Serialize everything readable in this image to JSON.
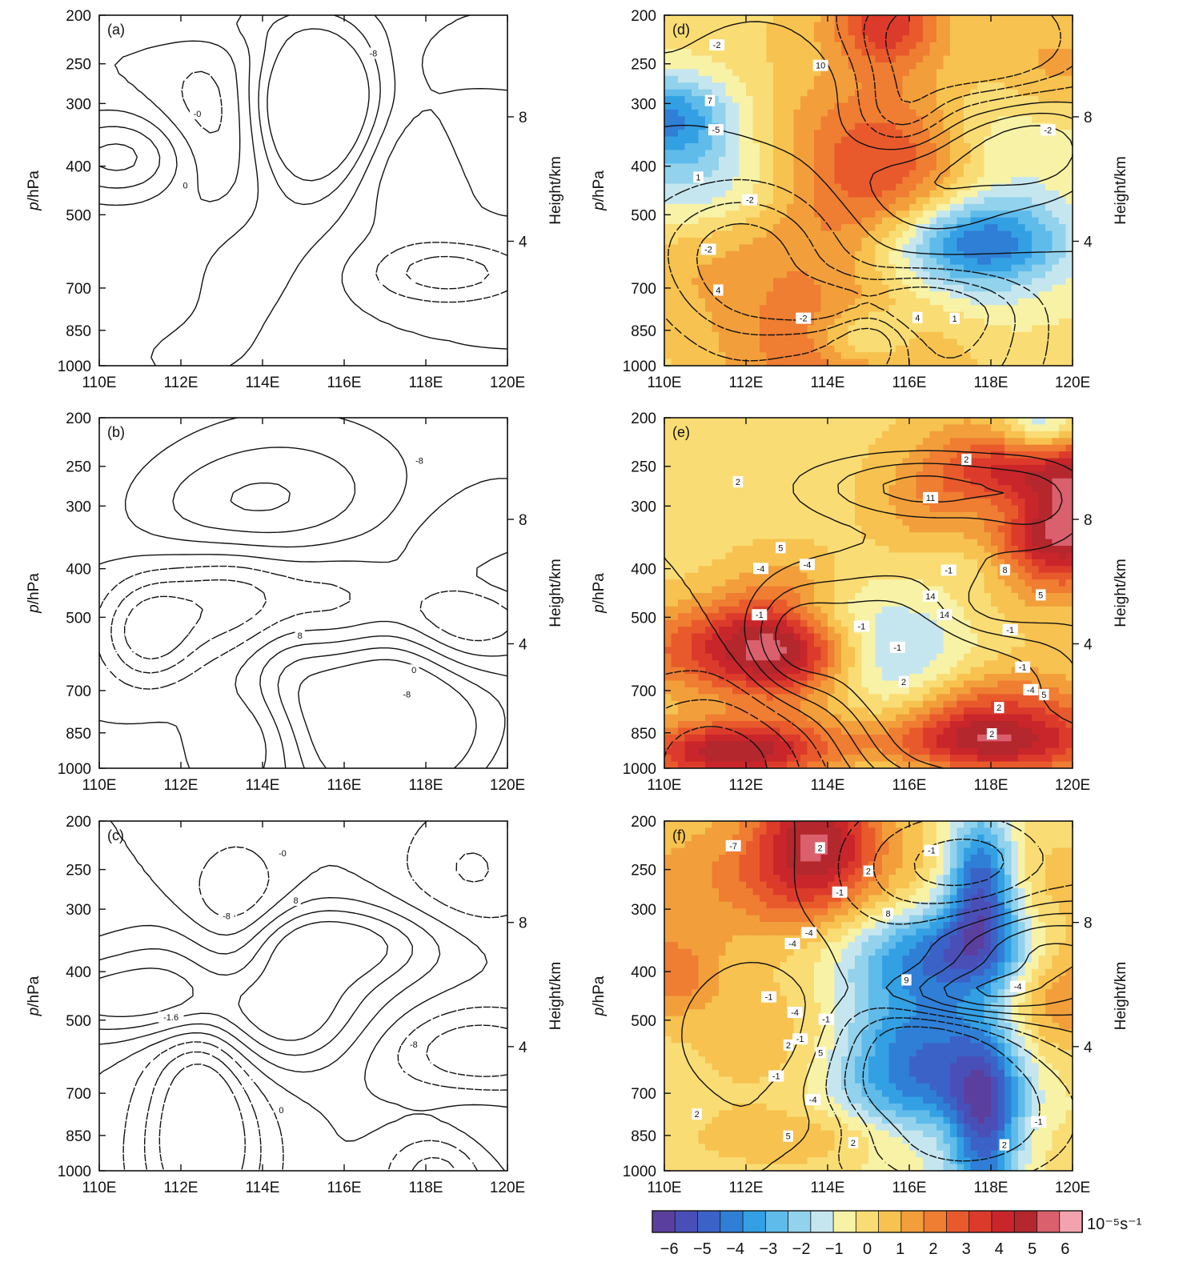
{
  "chart_data": {
    "type": "contour",
    "panels": [
      {
        "label": "(a)",
        "filled": false,
        "contour_labels": [
          "0",
          "-0",
          "-8"
        ]
      },
      {
        "label": "(b)",
        "filled": false,
        "contour_labels": [
          "0",
          "-8",
          "8",
          "-8"
        ]
      },
      {
        "label": "(c)",
        "filled": false,
        "contour_labels": [
          "-0",
          "0",
          "-8",
          "8",
          "-8",
          "-1.6"
        ]
      },
      {
        "label": "(d)",
        "filled": true,
        "contour_labels": [
          "-5",
          "-2",
          "4",
          "-2",
          "1",
          "7",
          "10",
          "4",
          "1",
          "-2",
          "-2",
          "-2"
        ]
      },
      {
        "label": "(e)",
        "filled": true,
        "contour_labels": [
          "14",
          "14",
          "8",
          "2",
          "11",
          "5",
          "-1",
          "-4",
          "-1",
          "2",
          "5",
          "2",
          "-1",
          "-4",
          "5",
          "2",
          "-1",
          "2",
          "-1",
          "-4",
          "-1"
        ]
      },
      {
        "label": "(f)",
        "filled": true,
        "contour_labels": [
          "-4",
          "-4",
          "-1",
          "8",
          "9",
          "-4",
          "-1",
          "2",
          "5",
          "5",
          "2",
          "2",
          "2",
          "2",
          "-1",
          "-4",
          "-1",
          "-4",
          "-7",
          "-1",
          "-1",
          "2",
          "-1"
        ]
      }
    ],
    "x_axis": {
      "ticks": [
        "110E",
        "112E",
        "114E",
        "116E",
        "118E",
        "120E"
      ],
      "range": [
        110,
        120
      ]
    },
    "y_axis_left": {
      "label": "p/hPa",
      "ticks": [
        "200",
        "250",
        "300",
        "400",
        "500",
        "700",
        "850",
        "1000"
      ],
      "scale": "log",
      "range": [
        1000,
        200
      ]
    },
    "y_axis_right": {
      "label": "Height/km",
      "ticks": [
        "4",
        "8"
      ]
    },
    "colorbar": {
      "ticks": [
        "−6",
        "−5",
        "−4",
        "−3",
        "−2",
        "−1",
        "0",
        "1",
        "2",
        "3",
        "4",
        "5",
        "6"
      ],
      "unit": "10⁻⁵s⁻¹",
      "colors": [
        "#5b3f9e",
        "#4a4fb8",
        "#3b63c7",
        "#2f7fd6",
        "#33a0e4",
        "#5fbbea",
        "#92d2ec",
        "#c6e6ef",
        "#f7f2a6",
        "#f9dc74",
        "#f7c24f",
        "#f29f3b",
        "#ef7d32",
        "#e85a2c",
        "#dc3b2b",
        "#c8262b",
        "#b3272d",
        "#d9606c",
        "#f2a3ad"
      ]
    }
  }
}
